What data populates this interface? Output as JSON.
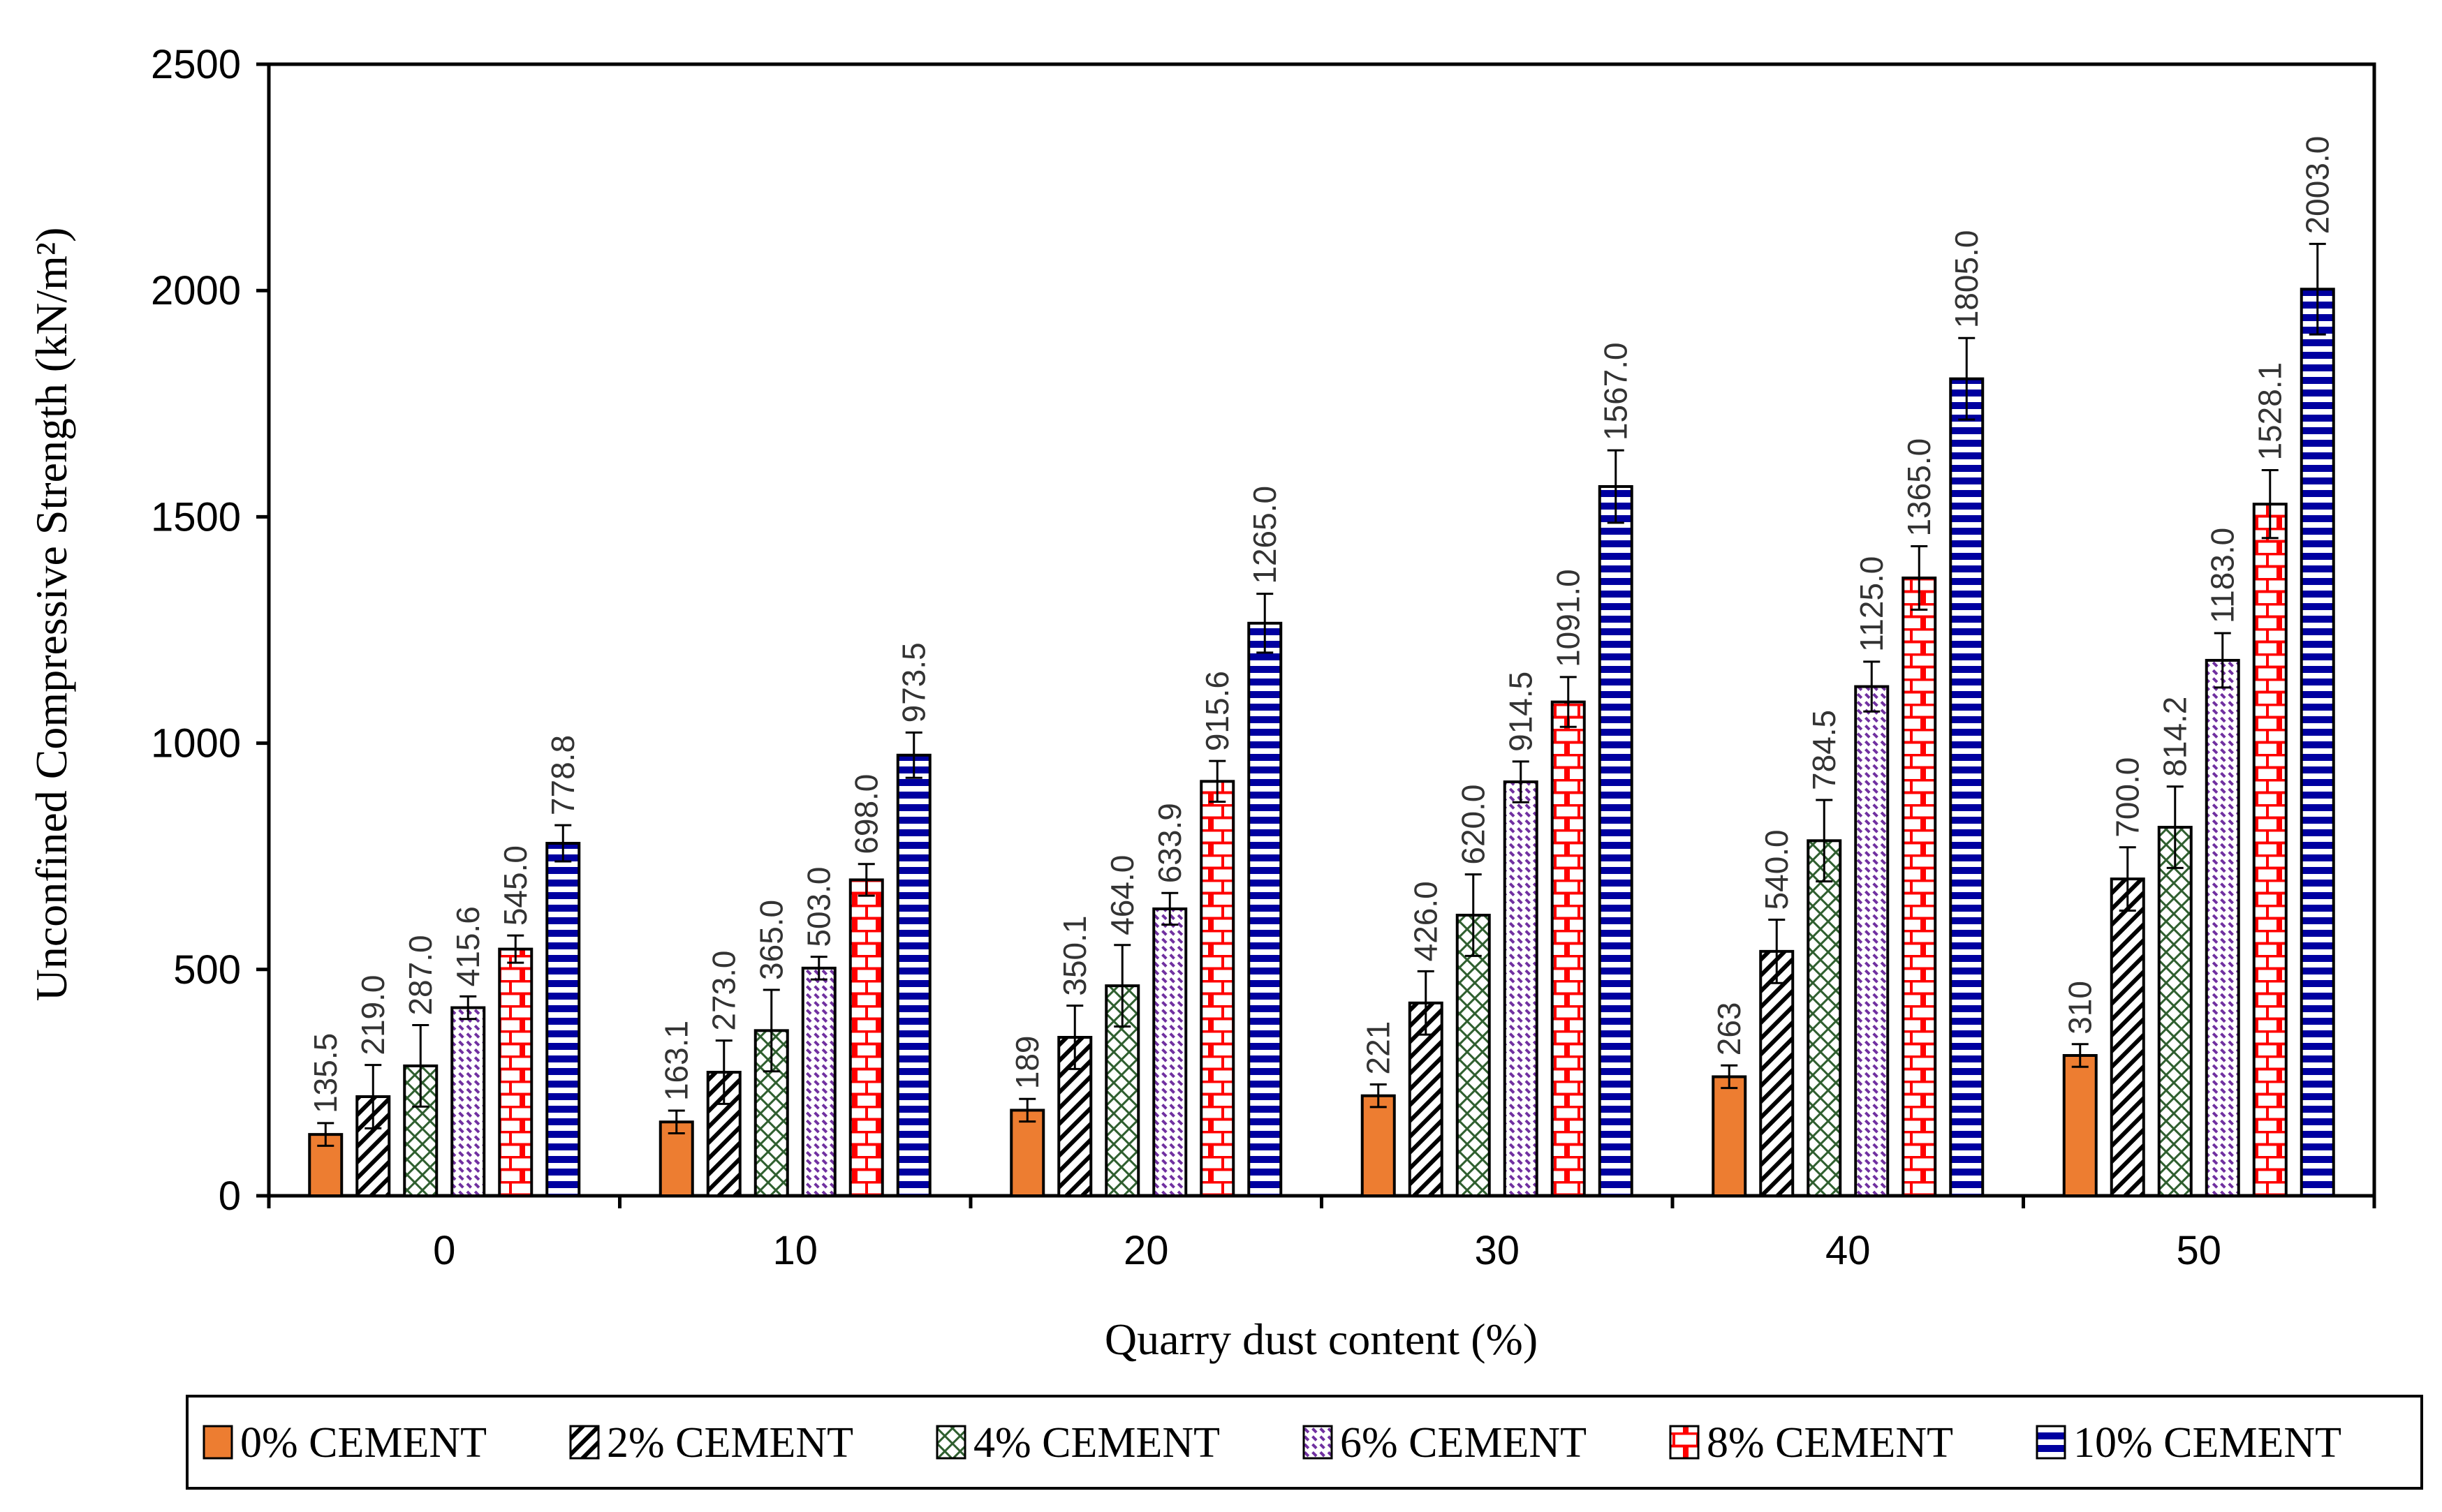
{
  "chart_data": {
    "type": "bar",
    "xlabel": "Quarry dust content (%)",
    "ylabel": "Unconfined Compressive Strength (kN/m²)",
    "categories": [
      "0",
      "10",
      "20",
      "30",
      "40",
      "50"
    ],
    "ylim": [
      0,
      2500
    ],
    "yticks": [
      "0",
      "500",
      "1000",
      "1500",
      "2000",
      "2500"
    ],
    "grid": false,
    "legend_position": "bottom",
    "series": [
      {
        "name": "0% CEMENT",
        "color": "#ED7D31",
        "pattern": "solid",
        "values": [
          135.5,
          163.1,
          189,
          221,
          263,
          310
        ],
        "labels": [
          "135.5",
          "163.1",
          "189",
          "221",
          "263",
          "310"
        ],
        "errors": [
          25,
          25,
          25,
          25,
          25,
          25
        ]
      },
      {
        "name": "2% CEMENT",
        "color": "#000000",
        "pattern": "diagonal-hatch",
        "values": [
          219,
          273,
          350.1,
          426,
          540,
          700
        ],
        "labels": [
          "219.0",
          "273.0",
          "350.1",
          "426.0",
          "540.0",
          "700.0"
        ],
        "errors": [
          70,
          70,
          70,
          70,
          70,
          70
        ]
      },
      {
        "name": "4% CEMENT",
        "color": "#2E5E2E",
        "pattern": "cross-hatch",
        "values": [
          287,
          365,
          464,
          620,
          784.5,
          814.2
        ],
        "labels": [
          "287.0",
          "365.0",
          "464.0",
          "620.0",
          "784.5",
          "814.2"
        ],
        "errors": [
          90,
          90,
          90,
          90,
          90,
          90
        ]
      },
      {
        "name": "6% CEMENT",
        "color": "#7030A0",
        "pattern": "diagonal-dash",
        "values": [
          415.6,
          503,
          633.9,
          914.5,
          1125,
          1183
        ],
        "labels": [
          "415.6",
          "503.0",
          "633.9",
          "914.5",
          "1125.0",
          "1183.0"
        ],
        "errors": [
          25,
          25,
          35,
          45,
          55,
          60
        ]
      },
      {
        "name": "8% CEMENT",
        "color": "#FF0000",
        "pattern": "brick",
        "values": [
          545,
          698,
          915.6,
          1091,
          1365,
          1528.1
        ],
        "labels": [
          "545.0",
          "698.0",
          "915.6",
          "1091.0",
          "1365.0",
          "1528.1"
        ],
        "errors": [
          30,
          35,
          45,
          55,
          70,
          75
        ]
      },
      {
        "name": "10% CEMENT",
        "color": "#0000A0",
        "pattern": "horizontal-stripe",
        "values": [
          778.8,
          973.5,
          1265,
          1567,
          1805,
          2003
        ],
        "labels": [
          "778.8",
          "973.5",
          "1265.0",
          "1567.0",
          "1805.0",
          "2003.0"
        ],
        "errors": [
          40,
          50,
          65,
          80,
          90,
          100
        ]
      }
    ]
  }
}
